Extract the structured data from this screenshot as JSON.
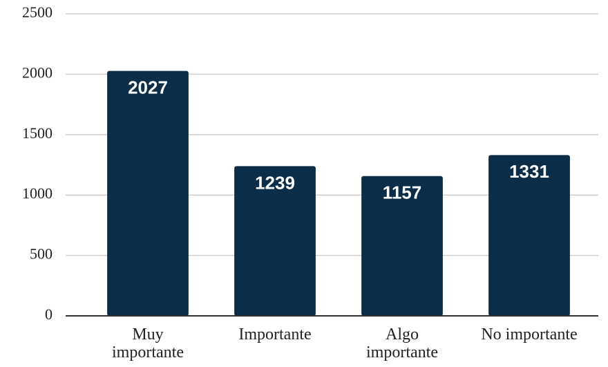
{
  "chart_data": {
    "type": "bar",
    "categories": [
      "Muy importante",
      "Importante",
      "Algo importante",
      "No importante"
    ],
    "values": [
      2027,
      1239,
      1157,
      1331
    ],
    "color": "#0b2d48",
    "ylim": [
      0,
      2500
    ],
    "yticks": [
      0,
      500,
      1000,
      1500,
      2000,
      2500
    ],
    "grid": true
  }
}
